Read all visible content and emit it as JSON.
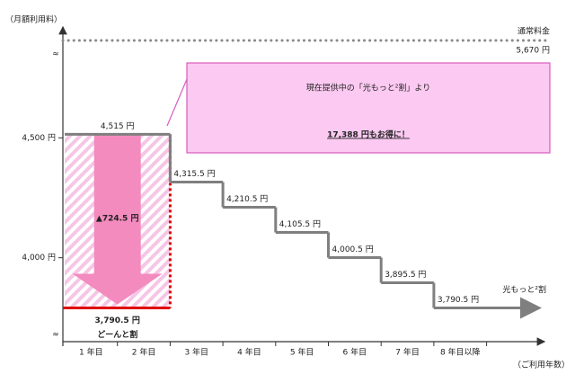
{
  "chart_data": {
    "type": "step",
    "y_label": "（月額利用料）",
    "x_label": "（ご利用年数）",
    "categories": [
      "1 年目",
      "2 年目",
      "3 年目",
      "4 年目",
      "5 年目",
      "6 年目",
      "7 年目",
      "8 年目以降"
    ],
    "series": [
      {
        "name": "光もっと²割",
        "color": "#7f7f7f",
        "values": [
          4515,
          4515,
          4315.5,
          4210.5,
          4105.5,
          4000.5,
          3895.5,
          3790.5
        ],
        "value_labels": [
          "4,515 円",
          null,
          "4,315.5 円",
          "4,210.5 円",
          "4,105.5 円",
          "4,000.5 円",
          "3,895.5 円",
          "3,790.5 円"
        ]
      }
    ],
    "discount": {
      "name": "どーんと割",
      "value": 3790.5,
      "value_label": "3,790.5 円",
      "color": "#e00000",
      "reduction": 724.5,
      "reduction_label": "▲724.5 円"
    },
    "normal_price": {
      "label": "通常料金",
      "value": 5670,
      "value_label": "5,670 円"
    },
    "callout": {
      "line1": "現在提供中の「光もっと²割」より",
      "line2": "17,388 円もお得に！"
    },
    "ylim": [
      3650,
      4850
    ],
    "yticks": [
      {
        "value": 4500,
        "label": "4,500 円"
      },
      {
        "value": 4000,
        "label": "4,000 円"
      }
    ]
  }
}
